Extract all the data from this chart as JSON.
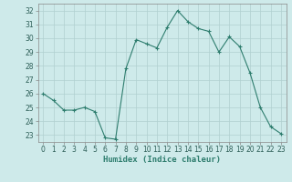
{
  "x": [
    0,
    1,
    2,
    3,
    4,
    5,
    6,
    7,
    8,
    9,
    10,
    11,
    12,
    13,
    14,
    15,
    16,
    17,
    18,
    19,
    20,
    21,
    22,
    23
  ],
  "y": [
    26,
    25.5,
    24.8,
    24.8,
    25.0,
    24.7,
    22.8,
    22.7,
    27.8,
    29.9,
    29.6,
    29.3,
    30.8,
    32.0,
    31.2,
    30.7,
    30.5,
    29.0,
    30.1,
    29.4,
    27.5,
    25.0,
    23.6,
    23.1
  ],
  "line_color": "#2e7d6e",
  "marker": "+",
  "marker_size": 3,
  "marker_linewidth": 0.8,
  "bg_color": "#ceeaea",
  "grid_color": "#b0d0d0",
  "xlabel": "Humidex (Indice chaleur)",
  "ylim": [
    22.5,
    32.5
  ],
  "xlim": [
    -0.5,
    23.5
  ],
  "yticks": [
    23,
    24,
    25,
    26,
    27,
    28,
    29,
    30,
    31,
    32
  ],
  "xticks": [
    0,
    1,
    2,
    3,
    4,
    5,
    6,
    7,
    8,
    9,
    10,
    11,
    12,
    13,
    14,
    15,
    16,
    17,
    18,
    19,
    20,
    21,
    22,
    23
  ],
  "label_fontsize": 6.5,
  "tick_fontsize": 5.5,
  "linewidth": 0.8
}
